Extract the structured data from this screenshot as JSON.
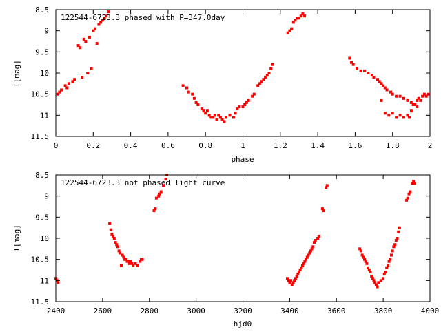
{
  "chart_data": [
    {
      "type": "scatter",
      "title": "122544-6723.3 phased with P=347.0day",
      "xlabel": "phase",
      "ylabel": "I[mag]",
      "xlim": [
        0,
        2
      ],
      "ylim": [
        11.5,
        8.5
      ],
      "y_inverted": true,
      "grid": false,
      "legend": "none",
      "marker_color": "#ff0000",
      "x_ticks": [
        "0",
        "0.2",
        "0.4",
        "0.6",
        "0.8",
        "1",
        "1.2",
        "1.4",
        "1.6",
        "1.8",
        "2"
      ],
      "y_ticks": [
        "8.5",
        "9",
        "9.5",
        "10",
        "10.5",
        "11",
        "11.5"
      ],
      "series": [
        {
          "points": [
            [
              0.01,
              10.5
            ],
            [
              0.02,
              10.45
            ],
            [
              0.03,
              10.4
            ],
            [
              0.05,
              10.3
            ],
            [
              0.06,
              10.35
            ],
            [
              0.07,
              10.25
            ],
            [
              0.09,
              10.2
            ],
            [
              0.1,
              10.15
            ],
            [
              0.12,
              9.35
            ],
            [
              0.13,
              9.4
            ],
            [
              0.14,
              10.1
            ],
            [
              0.15,
              9.2
            ],
            [
              0.16,
              9.25
            ],
            [
              0.17,
              10.0
            ],
            [
              0.18,
              9.15
            ],
            [
              0.19,
              9.9
            ],
            [
              0.2,
              9.0
            ],
            [
              0.21,
              8.95
            ],
            [
              0.22,
              9.3
            ],
            [
              0.23,
              8.85
            ],
            [
              0.24,
              8.8
            ],
            [
              0.25,
              8.75
            ],
            [
              0.26,
              8.7
            ],
            [
              0.27,
              8.65
            ],
            [
              0.28,
              8.55
            ],
            [
              0.68,
              10.3
            ],
            [
              0.7,
              10.35
            ],
            [
              0.71,
              10.45
            ],
            [
              0.73,
              10.5
            ],
            [
              0.74,
              10.6
            ],
            [
              0.75,
              10.7
            ],
            [
              0.76,
              10.75
            ],
            [
              0.78,
              10.85
            ],
            [
              0.79,
              10.9
            ],
            [
              0.8,
              10.95
            ],
            [
              0.81,
              10.9
            ],
            [
              0.82,
              11.0
            ],
            [
              0.83,
              11.05
            ],
            [
              0.84,
              11.05
            ],
            [
              0.85,
              11.0
            ],
            [
              0.86,
              11.1
            ],
            [
              0.87,
              11.0
            ],
            [
              0.88,
              11.05
            ],
            [
              0.89,
              11.1
            ],
            [
              0.9,
              11.15
            ],
            [
              0.91,
              11.05
            ],
            [
              0.93,
              11.0
            ],
            [
              0.95,
              11.05
            ],
            [
              0.96,
              10.95
            ],
            [
              0.97,
              10.85
            ],
            [
              0.98,
              10.8
            ],
            [
              1.0,
              10.8
            ],
            [
              1.01,
              10.75
            ],
            [
              1.02,
              10.7
            ],
            [
              1.03,
              10.65
            ],
            [
              1.05,
              10.55
            ],
            [
              1.06,
              10.5
            ],
            [
              1.08,
              10.3
            ],
            [
              1.09,
              10.25
            ],
            [
              1.1,
              10.2
            ],
            [
              1.11,
              10.15
            ],
            [
              1.12,
              10.1
            ],
            [
              1.13,
              10.05
            ],
            [
              1.14,
              10.0
            ],
            [
              1.15,
              9.9
            ],
            [
              1.16,
              9.8
            ],
            [
              1.24,
              9.05
            ],
            [
              1.25,
              9.0
            ],
            [
              1.26,
              8.95
            ],
            [
              1.27,
              8.8
            ],
            [
              1.28,
              8.75
            ],
            [
              1.29,
              8.7
            ],
            [
              1.3,
              8.7
            ],
            [
              1.31,
              8.65
            ],
            [
              1.32,
              8.6
            ],
            [
              1.33,
              8.65
            ],
            [
              1.57,
              9.65
            ],
            [
              1.58,
              9.75
            ],
            [
              1.59,
              9.8
            ],
            [
              1.61,
              9.9
            ],
            [
              1.63,
              9.95
            ],
            [
              1.65,
              9.95
            ],
            [
              1.67,
              10.0
            ],
            [
              1.69,
              10.05
            ],
            [
              1.7,
              10.1
            ],
            [
              1.72,
              10.15
            ],
            [
              1.73,
              10.2
            ],
            [
              1.74,
              10.25
            ],
            [
              1.75,
              10.3
            ],
            [
              1.76,
              10.35
            ],
            [
              1.77,
              10.4
            ],
            [
              1.79,
              10.45
            ],
            [
              1.8,
              10.5
            ],
            [
              1.82,
              10.55
            ],
            [
              1.84,
              10.55
            ],
            [
              1.86,
              10.6
            ],
            [
              1.88,
              10.65
            ],
            [
              1.9,
              10.7
            ],
            [
              1.92,
              10.75
            ],
            [
              1.93,
              10.8
            ],
            [
              1.74,
              10.65
            ],
            [
              1.76,
              10.95
            ],
            [
              1.78,
              11.0
            ],
            [
              1.8,
              10.95
            ],
            [
              1.82,
              11.05
            ],
            [
              1.84,
              11.0
            ],
            [
              1.86,
              11.05
            ],
            [
              1.88,
              11.0
            ],
            [
              1.89,
              11.05
            ],
            [
              1.9,
              10.9
            ],
            [
              1.91,
              10.75
            ],
            [
              1.93,
              10.65
            ],
            [
              1.94,
              10.6
            ],
            [
              1.95,
              10.65
            ],
            [
              1.96,
              10.55
            ],
            [
              1.97,
              10.5
            ],
            [
              1.98,
              10.55
            ],
            [
              1.99,
              10.5
            ]
          ]
        }
      ]
    },
    {
      "type": "scatter",
      "title": "122544-6723.3 not phased light curve",
      "xlabel": "hjd0",
      "ylabel": "I[mag]",
      "xlim": [
        2400,
        4000
      ],
      "ylim": [
        11.5,
        8.5
      ],
      "y_inverted": true,
      "grid": false,
      "legend": "none",
      "marker_color": "#ff0000",
      "x_ticks": [
        "2400",
        "2600",
        "2800",
        "3000",
        "3200",
        "3400",
        "3600",
        "3800",
        "4000"
      ],
      "y_ticks": [
        "8.5",
        "9",
        "9.5",
        "10",
        "10.5",
        "11",
        "11.5"
      ],
      "series": [
        {
          "points": [
            [
              2400,
              10.95
            ],
            [
              2405,
              11.0
            ],
            [
              2410,
              11.05
            ],
            [
              2630,
              9.65
            ],
            [
              2635,
              9.8
            ],
            [
              2640,
              9.9
            ],
            [
              2645,
              9.95
            ],
            [
              2650,
              10.0
            ],
            [
              2655,
              10.1
            ],
            [
              2660,
              10.15
            ],
            [
              2665,
              10.2
            ],
            [
              2670,
              10.3
            ],
            [
              2675,
              10.35
            ],
            [
              2680,
              10.65
            ],
            [
              2685,
              10.4
            ],
            [
              2690,
              10.45
            ],
            [
              2695,
              10.5
            ],
            [
              2700,
              10.5
            ],
            [
              2705,
              10.55
            ],
            [
              2710,
              10.55
            ],
            [
              2715,
              10.6
            ],
            [
              2720,
              10.55
            ],
            [
              2725,
              10.6
            ],
            [
              2730,
              10.65
            ],
            [
              2740,
              10.6
            ],
            [
              2750,
              10.65
            ],
            [
              2760,
              10.55
            ],
            [
              2765,
              10.5
            ],
            [
              2770,
              10.5
            ],
            [
              2820,
              9.35
            ],
            [
              2825,
              9.3
            ],
            [
              2830,
              9.05
            ],
            [
              2840,
              9.0
            ],
            [
              2845,
              8.95
            ],
            [
              2850,
              8.9
            ],
            [
              2860,
              8.75
            ],
            [
              2870,
              8.6
            ],
            [
              2875,
              8.5
            ],
            [
              3390,
              10.95
            ],
            [
              3395,
              11.0
            ],
            [
              3400,
              11.05
            ],
            [
              3405,
              11.0
            ],
            [
              3410,
              11.1
            ],
            [
              3415,
              11.05
            ],
            [
              3420,
              11.0
            ],
            [
              3425,
              10.95
            ],
            [
              3430,
              10.9
            ],
            [
              3435,
              10.85
            ],
            [
              3440,
              10.8
            ],
            [
              3445,
              10.75
            ],
            [
              3450,
              10.7
            ],
            [
              3455,
              10.65
            ],
            [
              3460,
              10.6
            ],
            [
              3465,
              10.55
            ],
            [
              3470,
              10.5
            ],
            [
              3475,
              10.45
            ],
            [
              3480,
              10.4
            ],
            [
              3485,
              10.35
            ],
            [
              3490,
              10.3
            ],
            [
              3495,
              10.25
            ],
            [
              3500,
              10.2
            ],
            [
              3505,
              10.1
            ],
            [
              3510,
              10.05
            ],
            [
              3520,
              10.0
            ],
            [
              3525,
              9.95
            ],
            [
              3540,
              9.3
            ],
            [
              3545,
              9.35
            ],
            [
              3555,
              8.8
            ],
            [
              3560,
              8.75
            ],
            [
              3700,
              10.25
            ],
            [
              3705,
              10.3
            ],
            [
              3710,
              10.4
            ],
            [
              3715,
              10.45
            ],
            [
              3720,
              10.5
            ],
            [
              3725,
              10.55
            ],
            [
              3730,
              10.6
            ],
            [
              3735,
              10.7
            ],
            [
              3740,
              10.75
            ],
            [
              3745,
              10.8
            ],
            [
              3750,
              10.9
            ],
            [
              3755,
              10.95
            ],
            [
              3760,
              11.0
            ],
            [
              3765,
              11.05
            ],
            [
              3770,
              11.1
            ],
            [
              3775,
              11.15
            ],
            [
              3780,
              11.05
            ],
            [
              3790,
              11.0
            ],
            [
              3800,
              10.95
            ],
            [
              3805,
              10.85
            ],
            [
              3810,
              10.8
            ],
            [
              3815,
              10.7
            ],
            [
              3820,
              10.65
            ],
            [
              3825,
              10.55
            ],
            [
              3830,
              10.5
            ],
            [
              3835,
              10.4
            ],
            [
              3840,
              10.3
            ],
            [
              3845,
              10.2
            ],
            [
              3850,
              10.15
            ],
            [
              3855,
              10.05
            ],
            [
              3860,
              10.0
            ],
            [
              3865,
              9.85
            ],
            [
              3870,
              9.75
            ],
            [
              3900,
              9.1
            ],
            [
              3905,
              9.05
            ],
            [
              3910,
              8.95
            ],
            [
              3915,
              8.9
            ],
            [
              3925,
              8.7
            ],
            [
              3930,
              8.65
            ],
            [
              3935,
              8.7
            ]
          ]
        }
      ]
    }
  ]
}
